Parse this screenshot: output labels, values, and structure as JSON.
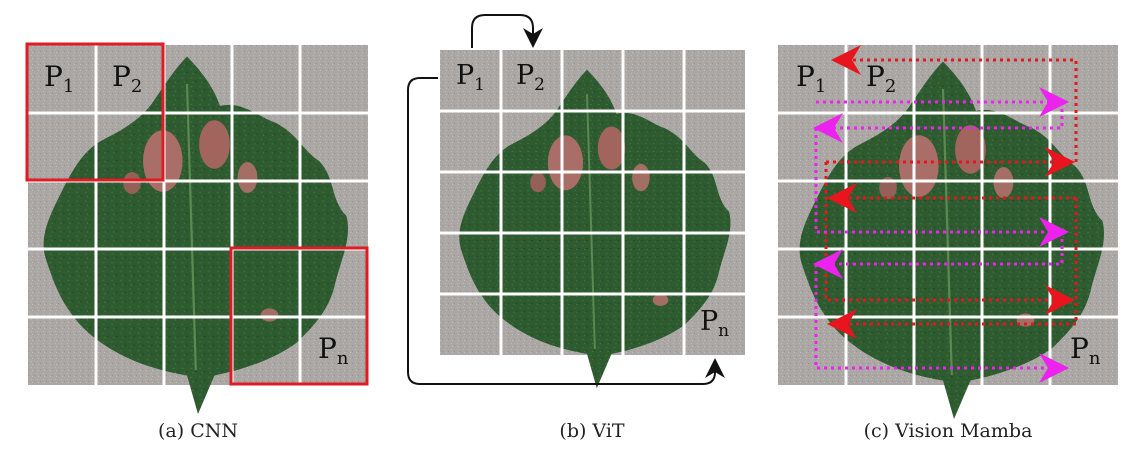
{
  "panels": [
    {
      "id": "cnn",
      "caption": "(a) CNN",
      "patch_labels": {
        "first": "P",
        "first_sub": "1",
        "second": "P",
        "second_sub": "2",
        "last": "P",
        "last_sub": "n"
      }
    },
    {
      "id": "vit",
      "caption": "(b) ViT",
      "patch_labels": {
        "first": "P",
        "first_sub": "1",
        "second": "P",
        "second_sub": "2",
        "last": "P",
        "last_sub": "n"
      }
    },
    {
      "id": "mamba",
      "caption": "(c) Vision Mamba",
      "patch_labels": {
        "first": "P",
        "first_sub": "1",
        "second": "P",
        "second_sub": "2",
        "last": "P",
        "last_sub": "n"
      }
    }
  ],
  "colors": {
    "cnn_box": "#e01b24",
    "vit_arrow": "#111111",
    "mamba_red": "#e8151f",
    "mamba_magenta": "#ee22ee",
    "grid": "#ffffff",
    "background": "#a9a6a4",
    "leaf": "#2e5a2e",
    "lesion": "#b0706a"
  },
  "grid": {
    "rows": 5,
    "cols": 5
  }
}
